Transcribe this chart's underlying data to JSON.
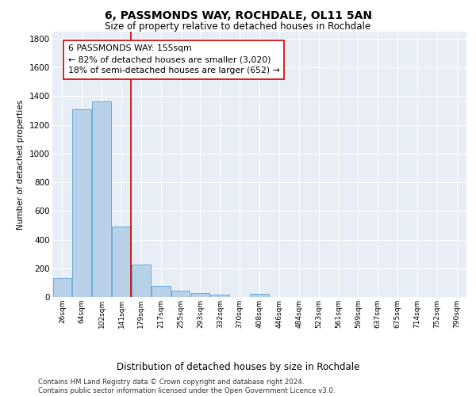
{
  "title": "6, PASSMONDS WAY, ROCHDALE, OL11 5AN",
  "subtitle": "Size of property relative to detached houses in Rochdale",
  "xlabel": "Distribution of detached houses by size in Rochdale",
  "ylabel": "Number of detached properties",
  "bar_labels": [
    "26sqm",
    "64sqm",
    "102sqm",
    "141sqm",
    "179sqm",
    "217sqm",
    "255sqm",
    "293sqm",
    "332sqm",
    "370sqm",
    "408sqm",
    "446sqm",
    "484sqm",
    "523sqm",
    "561sqm",
    "599sqm",
    "637sqm",
    "675sqm",
    "714sqm",
    "752sqm",
    "790sqm"
  ],
  "bar_heights": [
    135,
    1310,
    1365,
    490,
    225,
    80,
    45,
    25,
    15,
    0,
    20,
    0,
    0,
    0,
    0,
    0,
    0,
    0,
    0,
    0,
    0
  ],
  "bar_color": "#b8d0e8",
  "bar_edge_color": "#6aaed6",
  "vline_color": "#cc0000",
  "annotation_text": "6 PASSMONDS WAY: 155sqm\n← 82% of detached houses are smaller (3,020)\n18% of semi-detached houses are larger (652) →",
  "annotation_box_color": "#ffffff",
  "annotation_box_edge": "#cc0000",
  "ylim": [
    0,
    1850
  ],
  "yticks": [
    0,
    200,
    400,
    600,
    800,
    1000,
    1200,
    1400,
    1600,
    1800
  ],
  "footer": "Contains HM Land Registry data © Crown copyright and database right 2024.\nContains public sector information licensed under the Open Government Licence v3.0.",
  "plot_bg_color": "#e8eef5"
}
